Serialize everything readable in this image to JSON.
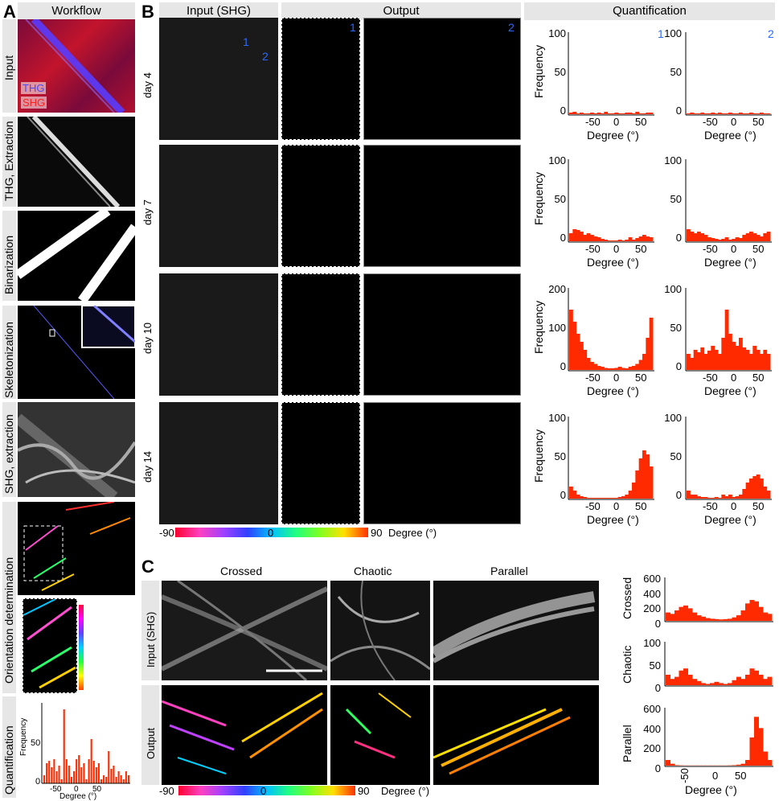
{
  "panelA": {
    "label": "A",
    "header": "Workflow",
    "steps": [
      "Input",
      "THG, Extraction",
      "Binarization",
      "Skeletonization",
      "SHG, extraction",
      "Orientation determination",
      "Quantification"
    ],
    "legend_thg": "THG",
    "legend_shg": "SHG",
    "hist": {
      "ylabel": "Frequency",
      "xlabel": "Degree (°)",
      "yticks": [
        "50",
        "0"
      ],
      "xticks": [
        "-50",
        "0",
        "50"
      ]
    }
  },
  "panelB": {
    "label": "B",
    "headers": {
      "input": "Input (SHG)",
      "output": "Output",
      "quant": "Quantification"
    },
    "days": [
      "day 4",
      "day 7",
      "day 10",
      "day 14"
    ],
    "roi1": "1",
    "roi2": "2",
    "ylabel": "Frequency",
    "xlabel": "Degree (°)",
    "xticks": [
      "-50",
      "0",
      "50"
    ],
    "yticks": [
      [
        "100",
        "50",
        "0"
      ],
      [
        "100",
        "50",
        "0"
      ],
      [
        "200",
        "100",
        "0"
      ],
      [
        "100",
        "50",
        "0"
      ]
    ],
    "yticks_right": [
      [
        "100",
        "50",
        "0"
      ],
      [
        "100",
        "50",
        "0"
      ],
      [
        "100",
        "50",
        "0"
      ],
      [
        "100",
        "50",
        "0"
      ]
    ],
    "colorbar": {
      "min": "-90",
      "mid": "0",
      "max": "90",
      "unit": "Degree (°)"
    }
  },
  "panelC": {
    "label": "C",
    "cols": [
      "Crossed",
      "Chaotic",
      "Parallel"
    ],
    "rows": [
      "Input (SHG)",
      "Output"
    ],
    "hist_labels": [
      "Crossed",
      "Chaotic",
      "Parallel"
    ],
    "hist_yticks": [
      [
        "600",
        "400",
        "200",
        "0"
      ],
      [
        "100",
        "50",
        "0"
      ],
      [
        "600",
        "400",
        "200",
        "0"
      ]
    ],
    "xticks": [
      "-50",
      "0",
      "50"
    ],
    "xlabel": "Degree (°)",
    "colorbar": {
      "min": "-90",
      "mid": "0",
      "max": "90",
      "unit": "Degree (°)"
    }
  },
  "chart_data": [
    {
      "type": "bar",
      "id": "A-quant",
      "x": [
        -85,
        -80,
        -75,
        -70,
        -65,
        -60,
        -55,
        -50,
        -45,
        -40,
        -35,
        -30,
        -25,
        -20,
        -15,
        -10,
        -5,
        0,
        5,
        10,
        15,
        20,
        25,
        30,
        35,
        40,
        45,
        50,
        55,
        60,
        65,
        70,
        75,
        80,
        85
      ],
      "values": [
        10,
        25,
        28,
        20,
        30,
        15,
        22,
        5,
        92,
        30,
        22,
        8,
        15,
        30,
        35,
        20,
        25,
        5,
        30,
        55,
        28,
        20,
        25,
        5,
        10,
        8,
        40,
        18,
        22,
        8,
        15,
        10,
        5,
        15,
        10
      ],
      "ylim": [
        0,
        100
      ]
    },
    {
      "type": "bar",
      "id": "B-day4-1",
      "values": [
        2,
        3,
        1,
        2,
        1,
        1,
        2,
        1,
        2,
        1,
        3,
        1,
        1,
        2,
        1,
        1,
        2,
        2,
        1,
        3,
        1,
        1,
        2,
        2
      ],
      "ylim": [
        0,
        100
      ]
    },
    {
      "type": "bar",
      "id": "B-day4-2",
      "values": [
        1,
        2,
        1,
        1,
        2,
        1,
        1,
        2,
        1,
        2,
        1,
        1,
        2,
        1,
        1,
        2,
        1,
        1,
        2,
        1,
        1,
        2,
        1,
        1
      ],
      "ylim": [
        0,
        100
      ]
    },
    {
      "type": "area",
      "id": "B-day7-1",
      "values": [
        10,
        15,
        14,
        12,
        8,
        10,
        8,
        6,
        5,
        3,
        2,
        1,
        1,
        1,
        2,
        1,
        2,
        5,
        2,
        4,
        6,
        8,
        6,
        5
      ],
      "ylim": [
        0,
        100
      ]
    },
    {
      "type": "area",
      "id": "B-day7-2",
      "values": [
        15,
        12,
        10,
        12,
        10,
        8,
        5,
        4,
        3,
        2,
        3,
        5,
        2,
        3,
        5,
        4,
        8,
        10,
        12,
        10,
        8,
        6,
        10,
        12
      ],
      "ylim": [
        0,
        100
      ]
    },
    {
      "type": "area",
      "id": "B-day10-1",
      "values": [
        150,
        120,
        90,
        70,
        50,
        30,
        20,
        15,
        10,
        8,
        5,
        4,
        4,
        5,
        8,
        5,
        4,
        8,
        10,
        15,
        25,
        40,
        80,
        130
      ],
      "ylim": [
        0,
        200
      ]
    },
    {
      "type": "area",
      "id": "B-day10-2",
      "values": [
        20,
        15,
        25,
        22,
        28,
        20,
        24,
        30,
        25,
        20,
        40,
        75,
        45,
        35,
        30,
        40,
        28,
        25,
        20,
        30,
        25,
        20,
        25,
        20
      ],
      "ylim": [
        0,
        100
      ]
    },
    {
      "type": "area",
      "id": "B-day14-1",
      "values": [
        15,
        10,
        5,
        3,
        2,
        1,
        1,
        1,
        1,
        1,
        1,
        1,
        1,
        1,
        2,
        3,
        5,
        10,
        20,
        35,
        50,
        60,
        55,
        40
      ],
      "ylim": [
        0,
        100
      ]
    },
    {
      "type": "area",
      "id": "B-day14-2",
      "values": [
        10,
        5,
        5,
        3,
        2,
        2,
        1,
        1,
        2,
        1,
        5,
        3,
        5,
        2,
        3,
        5,
        12,
        20,
        25,
        28,
        30,
        25,
        15,
        10
      ],
      "ylim": [
        0,
        100
      ]
    },
    {
      "type": "area",
      "id": "C-crossed",
      "values": [
        120,
        100,
        150,
        200,
        220,
        180,
        120,
        80,
        60,
        40,
        30,
        25,
        20,
        25,
        30,
        50,
        80,
        150,
        250,
        300,
        280,
        200,
        120,
        100
      ],
      "ylim": [
        0,
        600
      ]
    },
    {
      "type": "area",
      "id": "C-chaotic",
      "values": [
        25,
        15,
        20,
        35,
        40,
        25,
        15,
        10,
        5,
        3,
        5,
        8,
        5,
        3,
        5,
        12,
        20,
        15,
        25,
        40,
        35,
        25,
        15,
        20
      ],
      "ylim": [
        0,
        100
      ]
    },
    {
      "type": "area",
      "id": "C-parallel",
      "values": [
        60,
        20,
        5,
        3,
        2,
        2,
        2,
        2,
        2,
        2,
        2,
        2,
        2,
        2,
        3,
        5,
        10,
        20,
        60,
        300,
        520,
        400,
        150,
        60
      ],
      "ylim": [
        0,
        600
      ]
    }
  ]
}
